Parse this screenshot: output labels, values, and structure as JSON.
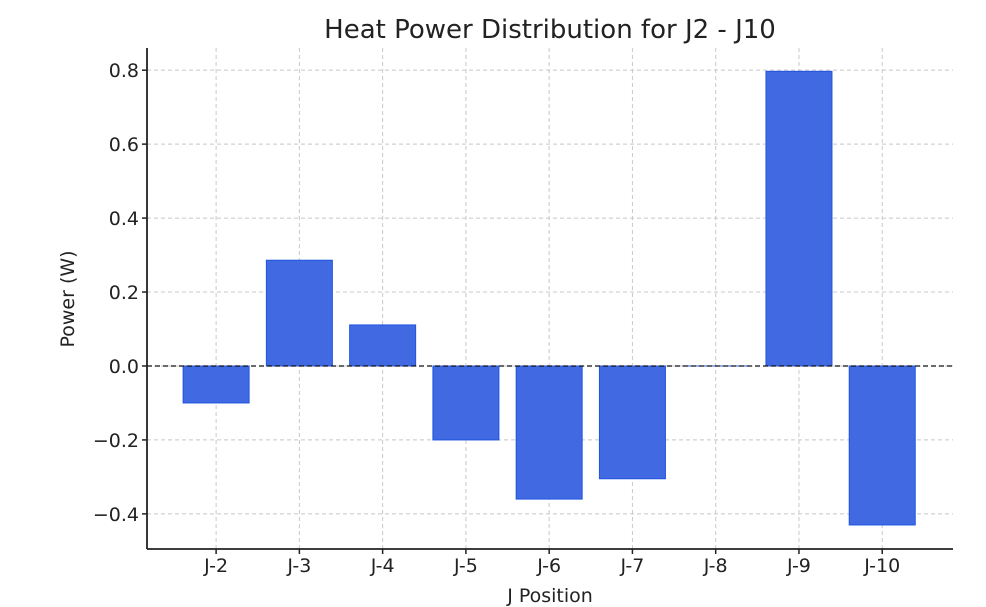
{
  "chart_data": {
    "type": "bar",
    "title": "Heat Power Distribution for J2 - J10",
    "xlabel": "J Position",
    "ylabel": "Power (W)",
    "categories": [
      "J-2",
      "J-3",
      "J-4",
      "J-5",
      "J-6",
      "J-7",
      "J-8",
      "J-9",
      "J-10"
    ],
    "values": [
      -0.1,
      0.286,
      0.111,
      -0.2,
      -0.36,
      -0.305,
      0.0,
      0.797,
      -0.43
    ],
    "ylim": [
      -0.495,
      0.86
    ],
    "yticks": [
      -0.4,
      -0.2,
      0.0,
      0.2,
      0.4,
      0.6,
      0.8
    ],
    "ytick_labels": [
      "−0.4",
      "−0.2",
      "0.0",
      "0.2",
      "0.4",
      "0.6",
      "0.8"
    ],
    "grid": true,
    "zero_line": "dashed",
    "bar_color": "#4169e1",
    "bar_edge_color": "#1f55e0"
  }
}
